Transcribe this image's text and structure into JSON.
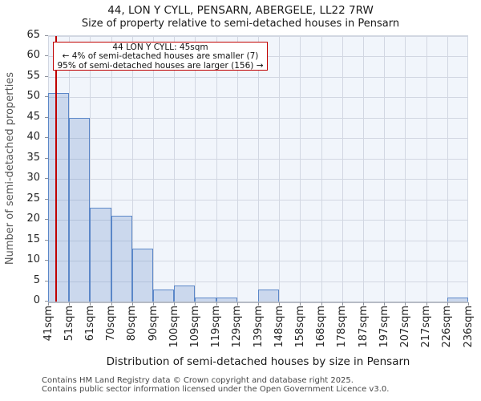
{
  "title": {
    "line1": "44, LON Y CYLL, PENSARN, ABERGELE, LL22 7RW",
    "line2": "Size of property relative to semi-detached houses in Pensarn"
  },
  "chart_data": {
    "type": "bar",
    "title": "44, LON Y CYLL, PENSARN, ABERGELE, LL22 7RW — Size of property relative to semi-detached houses in Pensarn",
    "xlabel": "Distribution of semi-detached houses by size in Pensarn",
    "ylabel": "Number of semi-detached properties",
    "categories": [
      "41sqm",
      "51sqm",
      "61sqm",
      "70sqm",
      "80sqm",
      "90sqm",
      "100sqm",
      "109sqm",
      "119sqm",
      "129sqm",
      "139sqm",
      "148sqm",
      "158sqm",
      "168sqm",
      "178sqm",
      "187sqm",
      "197sqm",
      "207sqm",
      "217sqm",
      "226sqm",
      "236sqm"
    ],
    "bin_edges_sqm": [
      41,
      51,
      61,
      70,
      80,
      90,
      100,
      109,
      119,
      129,
      139,
      148,
      158,
      168,
      178,
      187,
      197,
      207,
      217,
      226,
      236
    ],
    "values": [
      51,
      45,
      23,
      21,
      13,
      3,
      4,
      1,
      1,
      0,
      3,
      0,
      0,
      0,
      0,
      0,
      0,
      0,
      0,
      1
    ],
    "ylim": [
      0,
      65
    ],
    "yticks": [
      0,
      5,
      10,
      15,
      20,
      25,
      30,
      35,
      40,
      45,
      50,
      55,
      60,
      65
    ],
    "grid": true,
    "legend": "none",
    "marker": {
      "sqm": 45
    },
    "annotation": {
      "line1": "44 LON Y CYLL: 45sqm",
      "line2": "← 4% of semi-detached houses are smaller (7)",
      "line3": "95% of semi-detached houses are larger (156) →"
    },
    "colors": {
      "bar_fill": "#d3ddf0",
      "bar_edge": "#5b87c8",
      "marker_line": "#c00000",
      "annotation_border": "#c00000",
      "grid": "#d2d7e2",
      "plot_bg": "#f1f5fb"
    }
  },
  "footer": {
    "line1": "Contains HM Land Registry data © Crown copyright and database right 2025.",
    "line2": "Contains public sector information licensed under the Open Government Licence v3.0."
  }
}
